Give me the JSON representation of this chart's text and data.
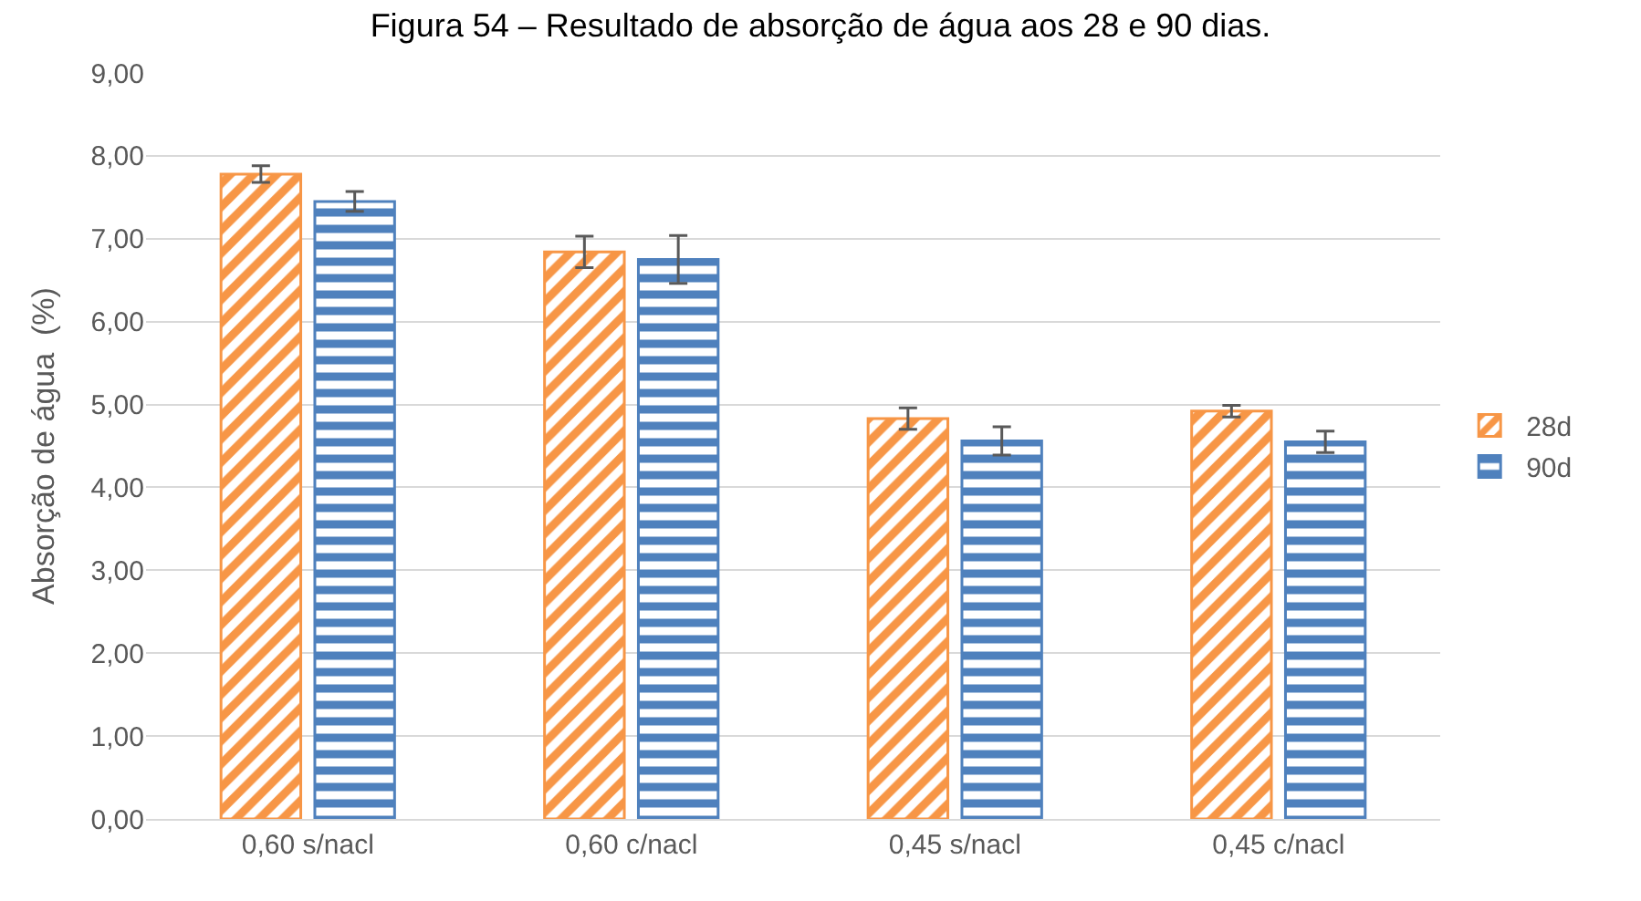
{
  "chart_data": {
    "type": "bar",
    "title": "Figura 54 – Resultado de absorção de água aos 28 e 90 dias.",
    "ylabel": "Absorção de água  (%)",
    "categories": [
      "0,60 s/nacl",
      "0,60 c/nacl",
      "0,45 s/nacl",
      "0,45 c/nacl"
    ],
    "series": [
      {
        "name": "28d",
        "color": "#f79646",
        "values": [
          7.78,
          6.84,
          4.83,
          4.92
        ],
        "errors": [
          0.1,
          0.19,
          0.13,
          0.07
        ]
      },
      {
        "name": "90d",
        "color": "#4f81bd",
        "values": [
          7.45,
          6.75,
          4.56,
          4.55
        ],
        "errors": [
          0.12,
          0.29,
          0.17,
          0.13
        ]
      }
    ],
    "ylim": [
      0,
      9
    ],
    "yticks": [
      {
        "value": 0,
        "label": "0,00"
      },
      {
        "value": 1,
        "label": "1,00"
      },
      {
        "value": 2,
        "label": "2,00"
      },
      {
        "value": 3,
        "label": "3,00"
      },
      {
        "value": 4,
        "label": "4,00"
      },
      {
        "value": 5,
        "label": "5,00"
      },
      {
        "value": 6,
        "label": "6,00"
      },
      {
        "value": 7,
        "label": "7,00"
      },
      {
        "value": 8,
        "label": "8,00"
      },
      {
        "value": 9,
        "label": "9,00"
      }
    ],
    "grid": "y",
    "legend": "right"
  }
}
